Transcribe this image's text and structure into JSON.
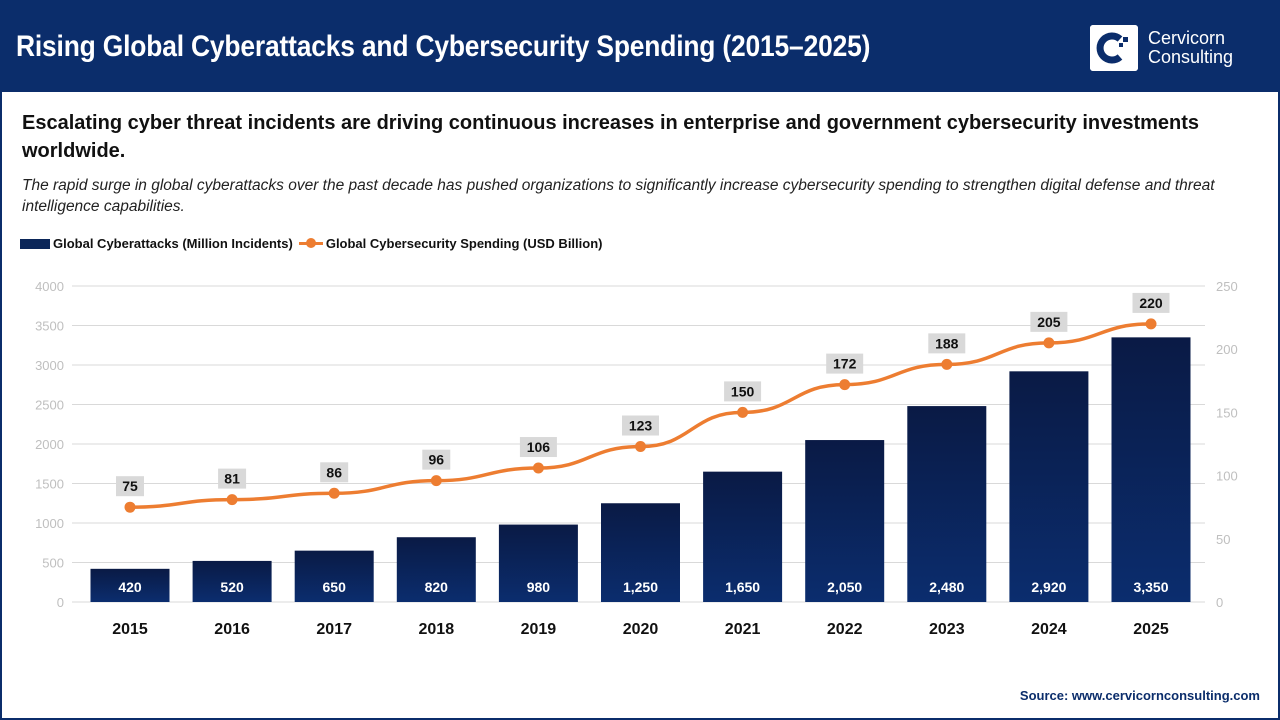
{
  "header": {
    "title": "Rising Global Cyberattacks and Cybersecurity Spending (2015–2025)",
    "logo_line1": "Cervicorn",
    "logo_line2": "Consulting"
  },
  "subtitle": "Escalating cyber threat incidents are driving continuous increases in enterprise and government cybersecurity investments worldwide.",
  "description": "The rapid surge in global cyberattacks over the past decade has pushed organizations to significantly increase cybersecurity spending to strengthen digital defense and threat intelligence capabilities.",
  "source": "Source: www.cervicornconsulting.com",
  "colors": {
    "bar": "#0b2d6b",
    "line": "#ed7d31",
    "header": "#0b2d6b"
  },
  "chart_data": {
    "type": "bar+line",
    "categories": [
      "2015",
      "2016",
      "2017",
      "2018",
      "2019",
      "2020",
      "2021",
      "2022",
      "2023",
      "2024",
      "2025"
    ],
    "series": [
      {
        "name": "Global Cyberattacks (Million Incidents)",
        "type": "bar",
        "axis": "left",
        "values": [
          420,
          520,
          650,
          820,
          980,
          1250,
          1650,
          2050,
          2480,
          2920,
          3350
        ],
        "labels": [
          "420",
          "520",
          "650",
          "820",
          "980",
          "1,250",
          "1,650",
          "2,050",
          "2,480",
          "2,920",
          "3,350"
        ]
      },
      {
        "name": "Global Cybersecurity Spending (USD Billion)",
        "type": "line",
        "axis": "right",
        "values": [
          75,
          81,
          86,
          96,
          106,
          123,
          150,
          172,
          188,
          205,
          220
        ],
        "labels": [
          "75",
          "81",
          "86",
          "96",
          "106",
          "123",
          "150",
          "172",
          "188",
          "205",
          "220"
        ]
      }
    ],
    "y_left": {
      "range": [
        0,
        4000
      ],
      "ticks": [
        "0",
        "500",
        "1000",
        "1500",
        "2000",
        "2500",
        "3000",
        "3500",
        "4000"
      ]
    },
    "y_right": {
      "range": [
        0,
        250
      ],
      "ticks": [
        "0",
        "50",
        "100",
        "150",
        "200",
        "250"
      ]
    },
    "grid": true,
    "legend": "top-left"
  }
}
